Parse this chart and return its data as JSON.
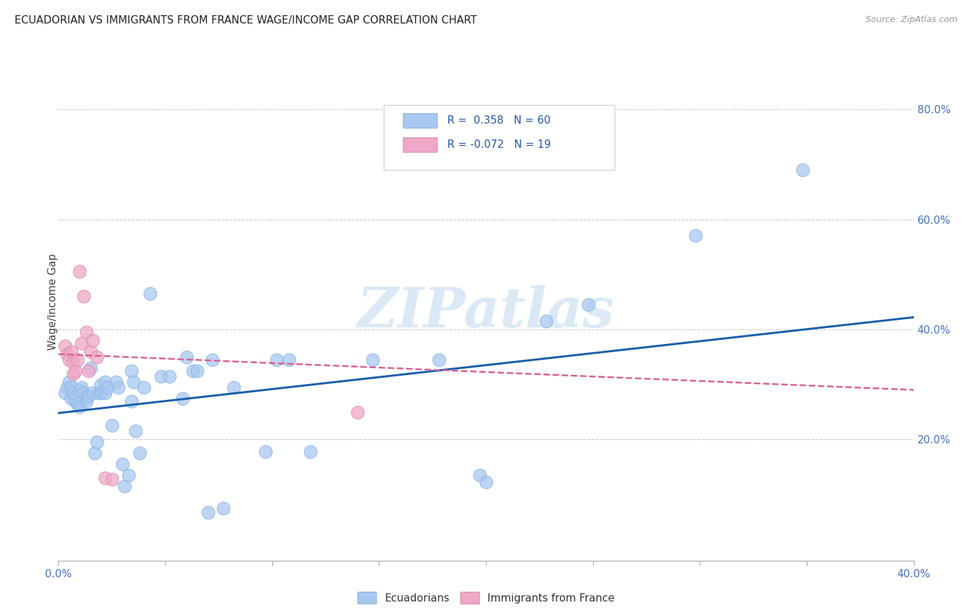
{
  "title": "ECUADORIAN VS IMMIGRANTS FROM FRANCE WAGE/INCOME GAP CORRELATION CHART",
  "source": "Source: ZipAtlas.com",
  "ylabel": "Wage/Income Gap",
  "right_ytick_vals": [
    0.2,
    0.4,
    0.6,
    0.8
  ],
  "xlim": [
    0.0,
    0.4
  ],
  "ylim": [
    -0.02,
    0.92
  ],
  "blue_color": "#a8c8f0",
  "pink_color": "#f0a8c8",
  "blue_line_color": "#1a5fa8",
  "pink_line_color": "#d86090",
  "watermark": "ZIPatlas",
  "blue_points": [
    [
      0.003,
      0.285
    ],
    [
      0.004,
      0.295
    ],
    [
      0.005,
      0.305
    ],
    [
      0.006,
      0.295
    ],
    [
      0.006,
      0.275
    ],
    [
      0.007,
      0.285
    ],
    [
      0.008,
      0.27
    ],
    [
      0.009,
      0.265
    ],
    [
      0.01,
      0.26
    ],
    [
      0.01,
      0.29
    ],
    [
      0.011,
      0.295
    ],
    [
      0.012,
      0.285
    ],
    [
      0.013,
      0.275
    ],
    [
      0.013,
      0.27
    ],
    [
      0.014,
      0.28
    ],
    [
      0.015,
      0.33
    ],
    [
      0.016,
      0.285
    ],
    [
      0.017,
      0.175
    ],
    [
      0.018,
      0.195
    ],
    [
      0.019,
      0.285
    ],
    [
      0.02,
      0.3
    ],
    [
      0.02,
      0.285
    ],
    [
      0.022,
      0.285
    ],
    [
      0.022,
      0.305
    ],
    [
      0.023,
      0.295
    ],
    [
      0.025,
      0.225
    ],
    [
      0.027,
      0.305
    ],
    [
      0.028,
      0.295
    ],
    [
      0.03,
      0.155
    ],
    [
      0.031,
      0.115
    ],
    [
      0.033,
      0.135
    ],
    [
      0.034,
      0.325
    ],
    [
      0.034,
      0.27
    ],
    [
      0.035,
      0.305
    ],
    [
      0.036,
      0.215
    ],
    [
      0.038,
      0.175
    ],
    [
      0.04,
      0.295
    ],
    [
      0.043,
      0.465
    ],
    [
      0.048,
      0.315
    ],
    [
      0.052,
      0.315
    ],
    [
      0.058,
      0.275
    ],
    [
      0.06,
      0.35
    ],
    [
      0.063,
      0.325
    ],
    [
      0.065,
      0.325
    ],
    [
      0.07,
      0.068
    ],
    [
      0.072,
      0.345
    ],
    [
      0.077,
      0.075
    ],
    [
      0.082,
      0.295
    ],
    [
      0.097,
      0.178
    ],
    [
      0.102,
      0.345
    ],
    [
      0.108,
      0.345
    ],
    [
      0.118,
      0.178
    ],
    [
      0.147,
      0.345
    ],
    [
      0.178,
      0.345
    ],
    [
      0.197,
      0.135
    ],
    [
      0.2,
      0.123
    ],
    [
      0.228,
      0.415
    ],
    [
      0.248,
      0.445
    ],
    [
      0.298,
      0.57
    ],
    [
      0.348,
      0.69
    ]
  ],
  "pink_points": [
    [
      0.003,
      0.37
    ],
    [
      0.004,
      0.355
    ],
    [
      0.005,
      0.345
    ],
    [
      0.006,
      0.36
    ],
    [
      0.007,
      0.32
    ],
    [
      0.007,
      0.34
    ],
    [
      0.008,
      0.325
    ],
    [
      0.009,
      0.345
    ],
    [
      0.01,
      0.505
    ],
    [
      0.011,
      0.375
    ],
    [
      0.012,
      0.46
    ],
    [
      0.013,
      0.395
    ],
    [
      0.014,
      0.325
    ],
    [
      0.015,
      0.36
    ],
    [
      0.016,
      0.38
    ],
    [
      0.018,
      0.35
    ],
    [
      0.022,
      0.13
    ],
    [
      0.025,
      0.128
    ],
    [
      0.14,
      0.25
    ]
  ],
  "blue_trendline_x": [
    0.0,
    0.4
  ],
  "blue_trendline_y": [
    0.248,
    0.422
  ],
  "pink_trendline_x": [
    0.0,
    0.4
  ],
  "pink_trendline_y": [
    0.355,
    0.29
  ]
}
